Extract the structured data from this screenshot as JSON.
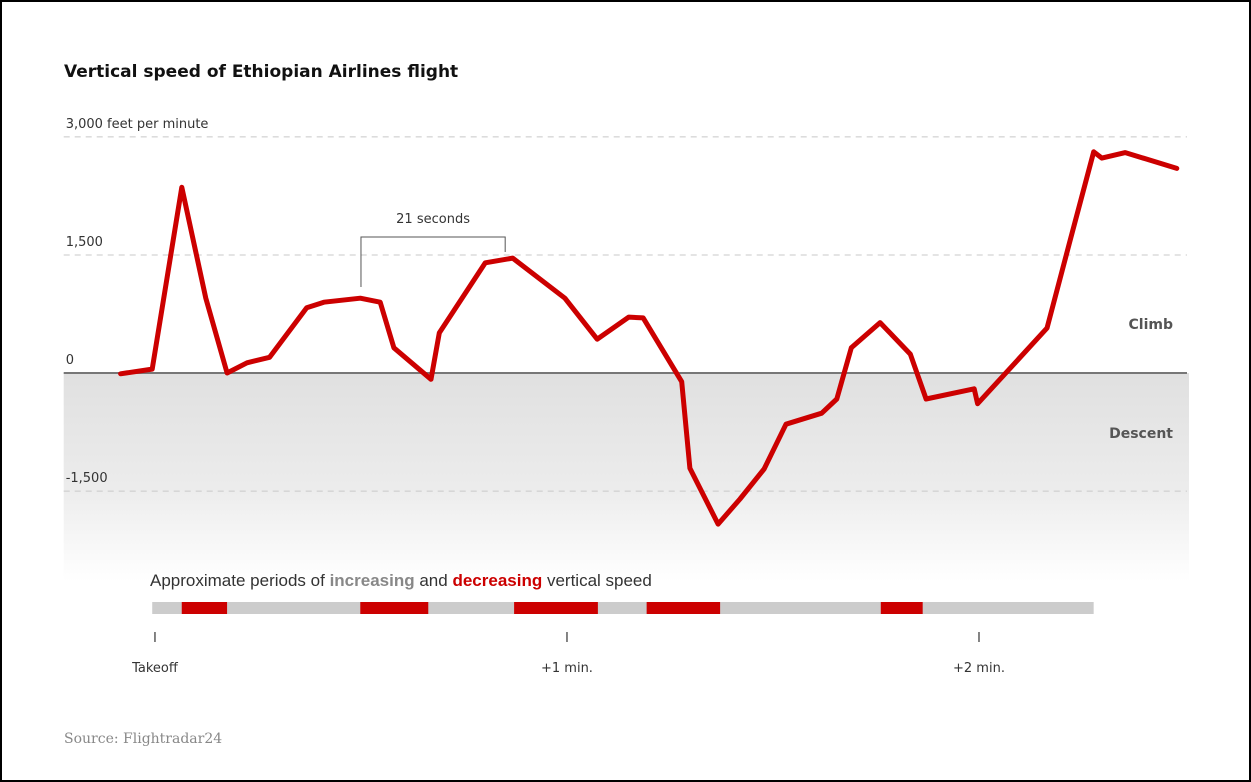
{
  "chart_data": {
    "type": "line",
    "title": "Vertical speed of Ethiopian Airlines flight",
    "x": [
      -5,
      -0.4,
      3.9,
      7.4,
      10.5,
      13.4,
      16.7,
      22.1,
      24.6,
      29.9,
      32.8,
      34.8,
      40.2,
      41.4,
      48.1,
      52.1,
      59.7,
      64.4,
      69,
      71.1,
      76.7,
      77.9,
      82,
      85.2,
      88.7,
      91.9,
      97.1,
      99.3,
      101.4,
      105.6,
      110,
      112.3,
      119.3,
      119.8,
      129.9,
      133.2,
      136.7,
      137.9,
      141.3,
      148.8
    ],
    "series": [
      {
        "name": "Vertical speed",
        "color": "#cc0000",
        "values": [
          -10,
          50,
          2360,
          950,
          0,
          130,
          200,
          830,
          900,
          950,
          900,
          320,
          -80,
          510,
          1400,
          1460,
          950,
          430,
          710,
          700,
          -110,
          -1210,
          -1920,
          -1600,
          -1220,
          -650,
          -510,
          -330,
          320,
          640,
          240,
          -330,
          -200,
          -390,
          570,
          1660,
          2810,
          2730,
          2800,
          2600
        ]
      }
    ],
    "xlim": [
      -13,
      150
    ],
    "xticks": [
      {
        "value": 0,
        "label": "Takeoff"
      },
      {
        "value": 60,
        "label": "+1 min."
      },
      {
        "value": 120,
        "label": "+2 min."
      }
    ],
    "ylim": [
      -2650,
      3250
    ],
    "yticks": [
      {
        "value": 3000,
        "label": "3,000 feet per minute"
      },
      {
        "value": 1500,
        "label": "1,500"
      },
      0,
      {
        "value": -1500,
        "label": "-1,500"
      }
    ],
    "grid": true,
    "zone_labels": {
      "above": "Climb",
      "below": "Descent"
    },
    "annotation": {
      "text": "21 seconds",
      "from": 30,
      "to": 51
    },
    "periods": {
      "label": {
        "prefix": "Approximate periods of",
        "increasing": "increasing",
        "and": "and",
        "decreasing": "decreasing",
        "suffix": "vertical speed"
      },
      "range": [
        -0.4,
        136.7
      ],
      "segments": [
        [
          3.9,
          10.5
        ],
        [
          29.9,
          39.8
        ],
        [
          52.3,
          64.5
        ],
        [
          71.6,
          82.3
        ],
        [
          105.7,
          111.8
        ]
      ]
    },
    "source": "Source: Flightradar24"
  }
}
